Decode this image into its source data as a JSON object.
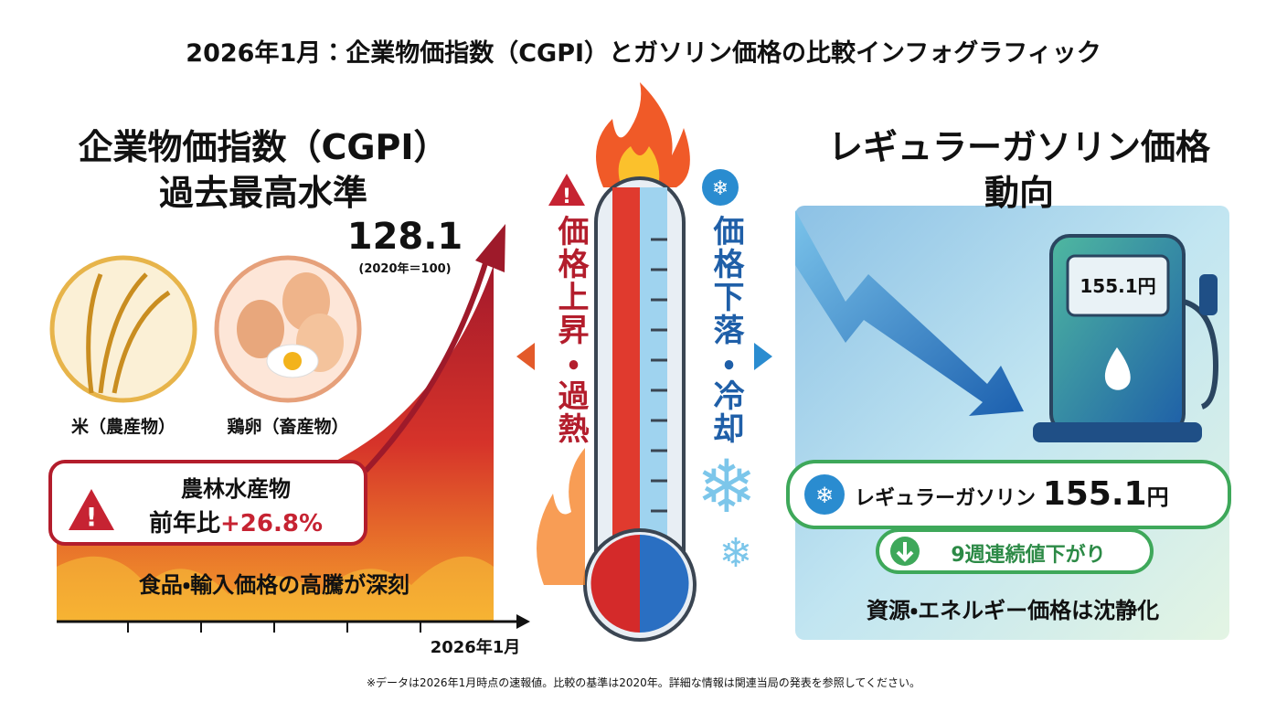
{
  "title": "2026年1月：企業物価指数（CGPI）とガソリン価格の比較インフォグラフィック",
  "left": {
    "heading": [
      "企業物価指数（CGPI）",
      "過去最高水準"
    ],
    "value": "128.1",
    "base": "(2020年＝100)",
    "items": [
      "米（農産物）",
      "鶏卵（畜産物）"
    ],
    "callout": {
      "label": "農林水産物",
      "prefix": "前年比",
      "change": "+26.8%"
    },
    "caption": "食品・輸入価格の高騰が深刻",
    "axis_label": "2026年1月"
  },
  "center": {
    "hot": "価格上昇・過熱",
    "cold": "価格下落・冷却"
  },
  "right": {
    "heading": [
      "レギュラーガソリン価格",
      "動向"
    ],
    "pump_display": "155.1円",
    "badge": {
      "label": "レギュラーガソリン",
      "value": "155.1",
      "unit": "円"
    },
    "streak": "9週連続値下がり",
    "caption": "資源・エネルギー価格は沈静化"
  },
  "footnote": "※データは2026年1月時点の速報値。比較の基準は2020年。詳細な情報は関連当局の発表を参照してください。"
}
